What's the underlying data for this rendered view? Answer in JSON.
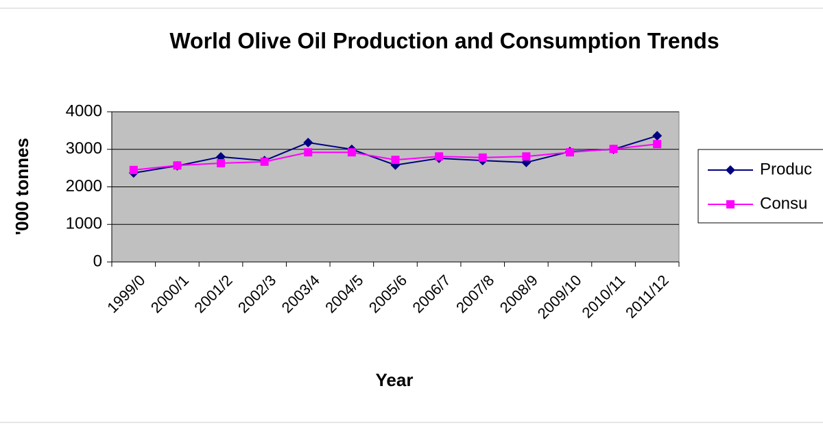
{
  "chart_data": {
    "type": "line",
    "title": "World Olive Oil Production and Consumption  Trends",
    "x_label": "Year",
    "y_label": "'000 tonnes",
    "categories": [
      "1999/0",
      "2000/1",
      "2001/2",
      "2002/3",
      "2003/4",
      "2004/5",
      "2005/6",
      "2006/7",
      "2007/8",
      "2008/9",
      "2009/10",
      "2010/11",
      "2011/12"
    ],
    "series": [
      {
        "name": "Produc",
        "color": "#000080",
        "marker": "diamond",
        "values": [
          2370,
          2560,
          2800,
          2700,
          3180,
          3000,
          2580,
          2760,
          2700,
          2650,
          2940,
          3000,
          3360
        ]
      },
      {
        "name": "Consu",
        "color": "#ff00ff",
        "marker": "square",
        "values": [
          2450,
          2570,
          2630,
          2670,
          2920,
          2920,
          2720,
          2810,
          2780,
          2810,
          2920,
          3010,
          3140
        ]
      }
    ],
    "ylim": [
      0,
      4000
    ],
    "yticks": [
      0,
      1000,
      2000,
      3000,
      4000
    ],
    "grid": true,
    "plot_background": "#c0c0c0",
    "legend": "right"
  }
}
